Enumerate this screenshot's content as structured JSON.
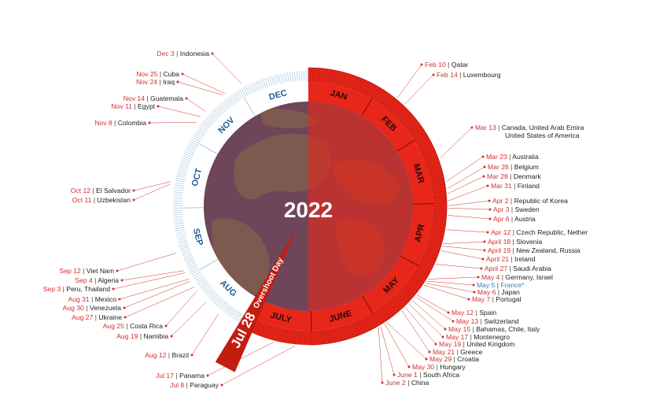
{
  "year": "2022",
  "overshoot": {
    "date": "Jul 28",
    "label": "Overshoot Day"
  },
  "months": [
    {
      "name": "JAN",
      "side": "red"
    },
    {
      "name": "FEB",
      "side": "red"
    },
    {
      "name": "MAR",
      "side": "red"
    },
    {
      "name": "APR",
      "side": "red"
    },
    {
      "name": "MAY",
      "side": "red"
    },
    {
      "name": "JUNE",
      "side": "red"
    },
    {
      "name": "JULY",
      "side": "red"
    },
    {
      "name": "AUG",
      "side": "blue"
    },
    {
      "name": "SEP",
      "side": "blue"
    },
    {
      "name": "OCT",
      "side": "blue"
    },
    {
      "name": "NOV",
      "side": "blue"
    },
    {
      "name": "DEC",
      "side": "blue"
    }
  ],
  "colors": {
    "red": "#e8261a",
    "dark_red": "#c41c10",
    "blue": "#1b5c96",
    "light_blue": "#a9c7df",
    "globe_purple": "#6e4559",
    "globe_red": "#c83a22",
    "date_red": "#d0312d"
  },
  "countries": [
    {
      "date": "Feb 10",
      "names": "Qatar",
      "side": "right",
      "highlight": false
    },
    {
      "date": "Feb 14",
      "names": "Luxembourg",
      "side": "right",
      "highlight": false
    },
    {
      "date": "Mar 13",
      "names": "Canada, United Arab Emira",
      "names2": "United States of America",
      "side": "right",
      "highlight": false
    },
    {
      "date": "Mar 23",
      "names": "Australia",
      "side": "right",
      "highlight": false
    },
    {
      "date": "Mar 26",
      "names": "Belgium",
      "side": "right",
      "highlight": false
    },
    {
      "date": "Mar 28",
      "names": "Denmark",
      "side": "right",
      "highlight": false
    },
    {
      "date": "Mar 31",
      "names": "Finland",
      "side": "right",
      "highlight": false
    },
    {
      "date": "Apr 2",
      "names": "Republic of Korea",
      "side": "right",
      "highlight": false
    },
    {
      "date": "Apr 3",
      "names": "Sweden",
      "side": "right",
      "highlight": false
    },
    {
      "date": "Apr 6",
      "names": "Austria",
      "side": "right",
      "highlight": false
    },
    {
      "date": "Apr 12",
      "names": "Czech Republic, Nether",
      "side": "right",
      "highlight": false
    },
    {
      "date": "April 18",
      "names": "Slovenia",
      "side": "right",
      "highlight": false
    },
    {
      "date": "April 19",
      "names": "New Zealand, Russia",
      "side": "right",
      "highlight": false
    },
    {
      "date": "April 21",
      "names": "Ireland",
      "side": "right",
      "highlight": false
    },
    {
      "date": "April 27",
      "names": "Saudi Arabia",
      "side": "right",
      "highlight": false
    },
    {
      "date": "May 4",
      "names": "Germany, Israel",
      "side": "right",
      "highlight": false
    },
    {
      "date": "May 5",
      "names": "France*",
      "side": "right",
      "highlight": true
    },
    {
      "date": "May 6",
      "names": "Japan",
      "side": "right",
      "highlight": false
    },
    {
      "date": "May 7",
      "names": "Portugal",
      "side": "right",
      "highlight": false
    },
    {
      "date": "May 12",
      "names": "Spain",
      "side": "right",
      "highlight": false
    },
    {
      "date": "May 13",
      "names": "Switzerland",
      "side": "right",
      "highlight": false
    },
    {
      "date": "May 15",
      "names": "Bahamas, Chile, Italy",
      "side": "right",
      "highlight": false
    },
    {
      "date": "May 17",
      "names": "Montenegro",
      "side": "right",
      "highlight": false
    },
    {
      "date": "May 19",
      "names": "United Kingdom",
      "side": "right",
      "highlight": false
    },
    {
      "date": "May 21",
      "names": "Greece",
      "side": "right",
      "highlight": false
    },
    {
      "date": "May 29",
      "names": "Croatia",
      "side": "right",
      "highlight": false
    },
    {
      "date": "May 30",
      "names": "Hungary",
      "side": "right",
      "highlight": false
    },
    {
      "date": "June 1",
      "names": "South Africa",
      "side": "right",
      "highlight": false
    },
    {
      "date": "June 2",
      "names": "China",
      "side": "right",
      "highlight": false
    },
    {
      "date": "Dec 3",
      "names": "Indonesia",
      "side": "left",
      "highlight": false
    },
    {
      "date": "Nov 25",
      "names": "Cuba",
      "side": "left",
      "highlight": false
    },
    {
      "date": "Nov 24",
      "names": "Iraq",
      "side": "left",
      "highlight": false
    },
    {
      "date": "Nov 14",
      "names": "Guatemala",
      "side": "left",
      "highlight": false
    },
    {
      "date": "Nov 11",
      "names": "Egypt",
      "side": "left",
      "highlight": false
    },
    {
      "date": "Nov 8",
      "names": "Colombia",
      "side": "left",
      "highlight": false
    },
    {
      "date": "Oct 12",
      "names": "El Salvador",
      "side": "left",
      "highlight": false
    },
    {
      "date": "Oct 11",
      "names": "Uzbekistan",
      "side": "left",
      "highlight": false
    },
    {
      "date": "Sep 12",
      "names": "Viet Nam",
      "side": "left",
      "highlight": false
    },
    {
      "date": "Sep 4",
      "names": "Algeria",
      "side": "left",
      "highlight": false
    },
    {
      "date": "Sep 3",
      "names": "Peru, Thailand",
      "side": "left",
      "highlight": false
    },
    {
      "date": "Aug 31",
      "names": "Mexico",
      "side": "left",
      "highlight": false
    },
    {
      "date": "Aug 30",
      "names": "Venezuela",
      "side": "left",
      "highlight": false
    },
    {
      "date": "Aug 27",
      "names": "Ukraine",
      "side": "left",
      "highlight": false
    },
    {
      "date": "Aug 25",
      "names": "Costa Rica",
      "side": "left",
      "highlight": false
    },
    {
      "date": "Aug 19",
      "names": "Namibia",
      "side": "left",
      "highlight": false
    },
    {
      "date": "Aug 12",
      "names": "Brazil",
      "side": "left",
      "highlight": false
    },
    {
      "date": "Jul 17",
      "names": "Panama",
      "side": "left",
      "highlight": false
    },
    {
      "date": "Jul 8",
      "names": "Paraguay",
      "side": "left",
      "highlight": false
    }
  ]
}
